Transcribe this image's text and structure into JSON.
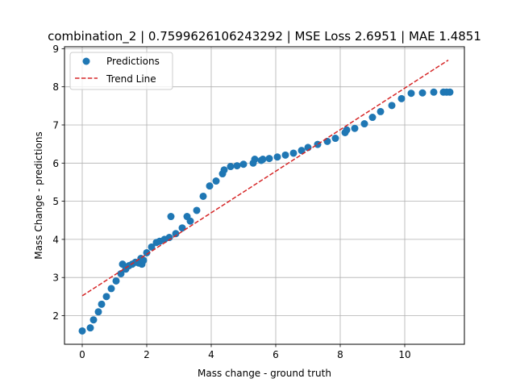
{
  "chart_data": {
    "type": "scatter",
    "title": "combination_2 | 0.7599626106243292 | MSE Loss 2.6951 | MAE 1.4851",
    "xlabel": "Mass change - ground truth",
    "ylabel": "Mass Change - predictions",
    "xlim": [
      -0.55,
      11.85
    ],
    "ylim": [
      1.25,
      9.05
    ],
    "xticks": [
      0,
      2,
      4,
      6,
      8,
      10
    ],
    "yticks": [
      2,
      3,
      4,
      5,
      6,
      7,
      8,
      9
    ],
    "grid": true,
    "legend_placement": "top-left",
    "series": [
      {
        "name": "Predictions",
        "kind": "scatter",
        "color": "#1f77b4",
        "x": [
          0.0,
          0.25,
          0.35,
          0.5,
          0.6,
          0.75,
          0.9,
          1.05,
          1.2,
          1.25,
          1.35,
          1.45,
          1.55,
          1.65,
          1.75,
          1.82,
          1.85,
          1.9,
          2.0,
          2.15,
          2.3,
          2.4,
          2.55,
          2.7,
          2.75,
          2.9,
          3.1,
          3.25,
          3.35,
          3.55,
          3.75,
          3.95,
          4.15,
          4.35,
          4.4,
          4.6,
          4.8,
          5.0,
          5.3,
          5.35,
          5.55,
          5.6,
          5.8,
          6.05,
          6.3,
          6.55,
          6.8,
          7.0,
          7.3,
          7.6,
          7.85,
          8.15,
          8.2,
          8.45,
          8.75,
          9.0,
          9.25,
          9.6,
          9.9,
          10.2,
          10.55,
          10.9,
          11.2,
          11.3,
          11.4
        ],
        "y": [
          1.6,
          1.68,
          1.89,
          2.1,
          2.3,
          2.5,
          2.71,
          2.91,
          3.1,
          3.35,
          3.22,
          3.31,
          3.35,
          3.4,
          3.38,
          3.5,
          3.35,
          3.45,
          3.65,
          3.8,
          3.92,
          3.95,
          4.0,
          4.05,
          4.6,
          4.15,
          4.3,
          4.6,
          4.48,
          4.76,
          5.13,
          5.4,
          5.53,
          5.72,
          5.82,
          5.91,
          5.93,
          5.97,
          6.0,
          6.1,
          6.07,
          6.1,
          6.12,
          6.16,
          6.21,
          6.26,
          6.33,
          6.41,
          6.49,
          6.57,
          6.65,
          6.8,
          6.87,
          6.91,
          7.03,
          7.2,
          7.35,
          7.51,
          7.69,
          7.83,
          7.84,
          7.86,
          7.86,
          7.86,
          7.86
        ]
      },
      {
        "name": "Trend Line",
        "kind": "line",
        "color": "#d62728",
        "style": "dashed",
        "x": [
          0.0,
          11.35
        ],
        "y": [
          2.52,
          8.7
        ]
      }
    ]
  }
}
